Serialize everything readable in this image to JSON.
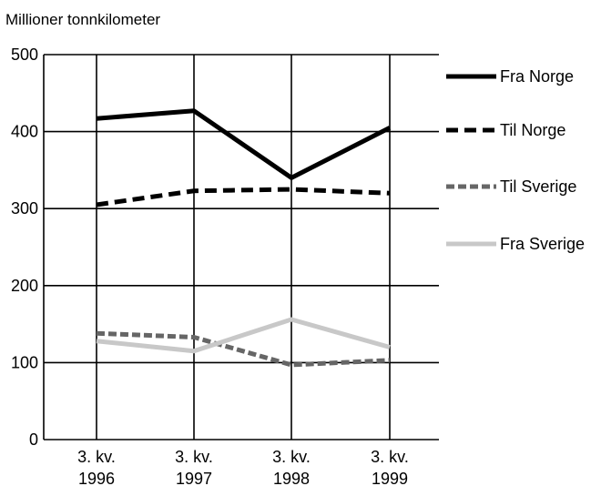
{
  "chart_data": {
    "type": "line",
    "ylabel": "Millioner tonnkilometer",
    "ylim": [
      0,
      500
    ],
    "yticks": [
      0,
      100,
      200,
      300,
      400,
      500
    ],
    "categories": [
      [
        "3. kv.",
        "1996"
      ],
      [
        "3. kv.",
        "1997"
      ],
      [
        "3. kv.",
        "1998"
      ],
      [
        "3. kv.",
        "1999"
      ]
    ],
    "grid": true,
    "legend_position": "right",
    "series": [
      {
        "name": "Fra Norge",
        "values": [
          417,
          427,
          340,
          405
        ],
        "color": "#000000",
        "style": "solid"
      },
      {
        "name": "Til Norge",
        "values": [
          305,
          323,
          325,
          320
        ],
        "color": "#000000",
        "style": "dashed"
      },
      {
        "name": "Til Sverige",
        "values": [
          138,
          133,
          97,
          103
        ],
        "color": "#666666",
        "style": "dashed"
      },
      {
        "name": "Fra Sverige",
        "values": [
          128,
          115,
          156,
          120
        ],
        "color": "#c8c8c8",
        "style": "solid"
      }
    ]
  }
}
